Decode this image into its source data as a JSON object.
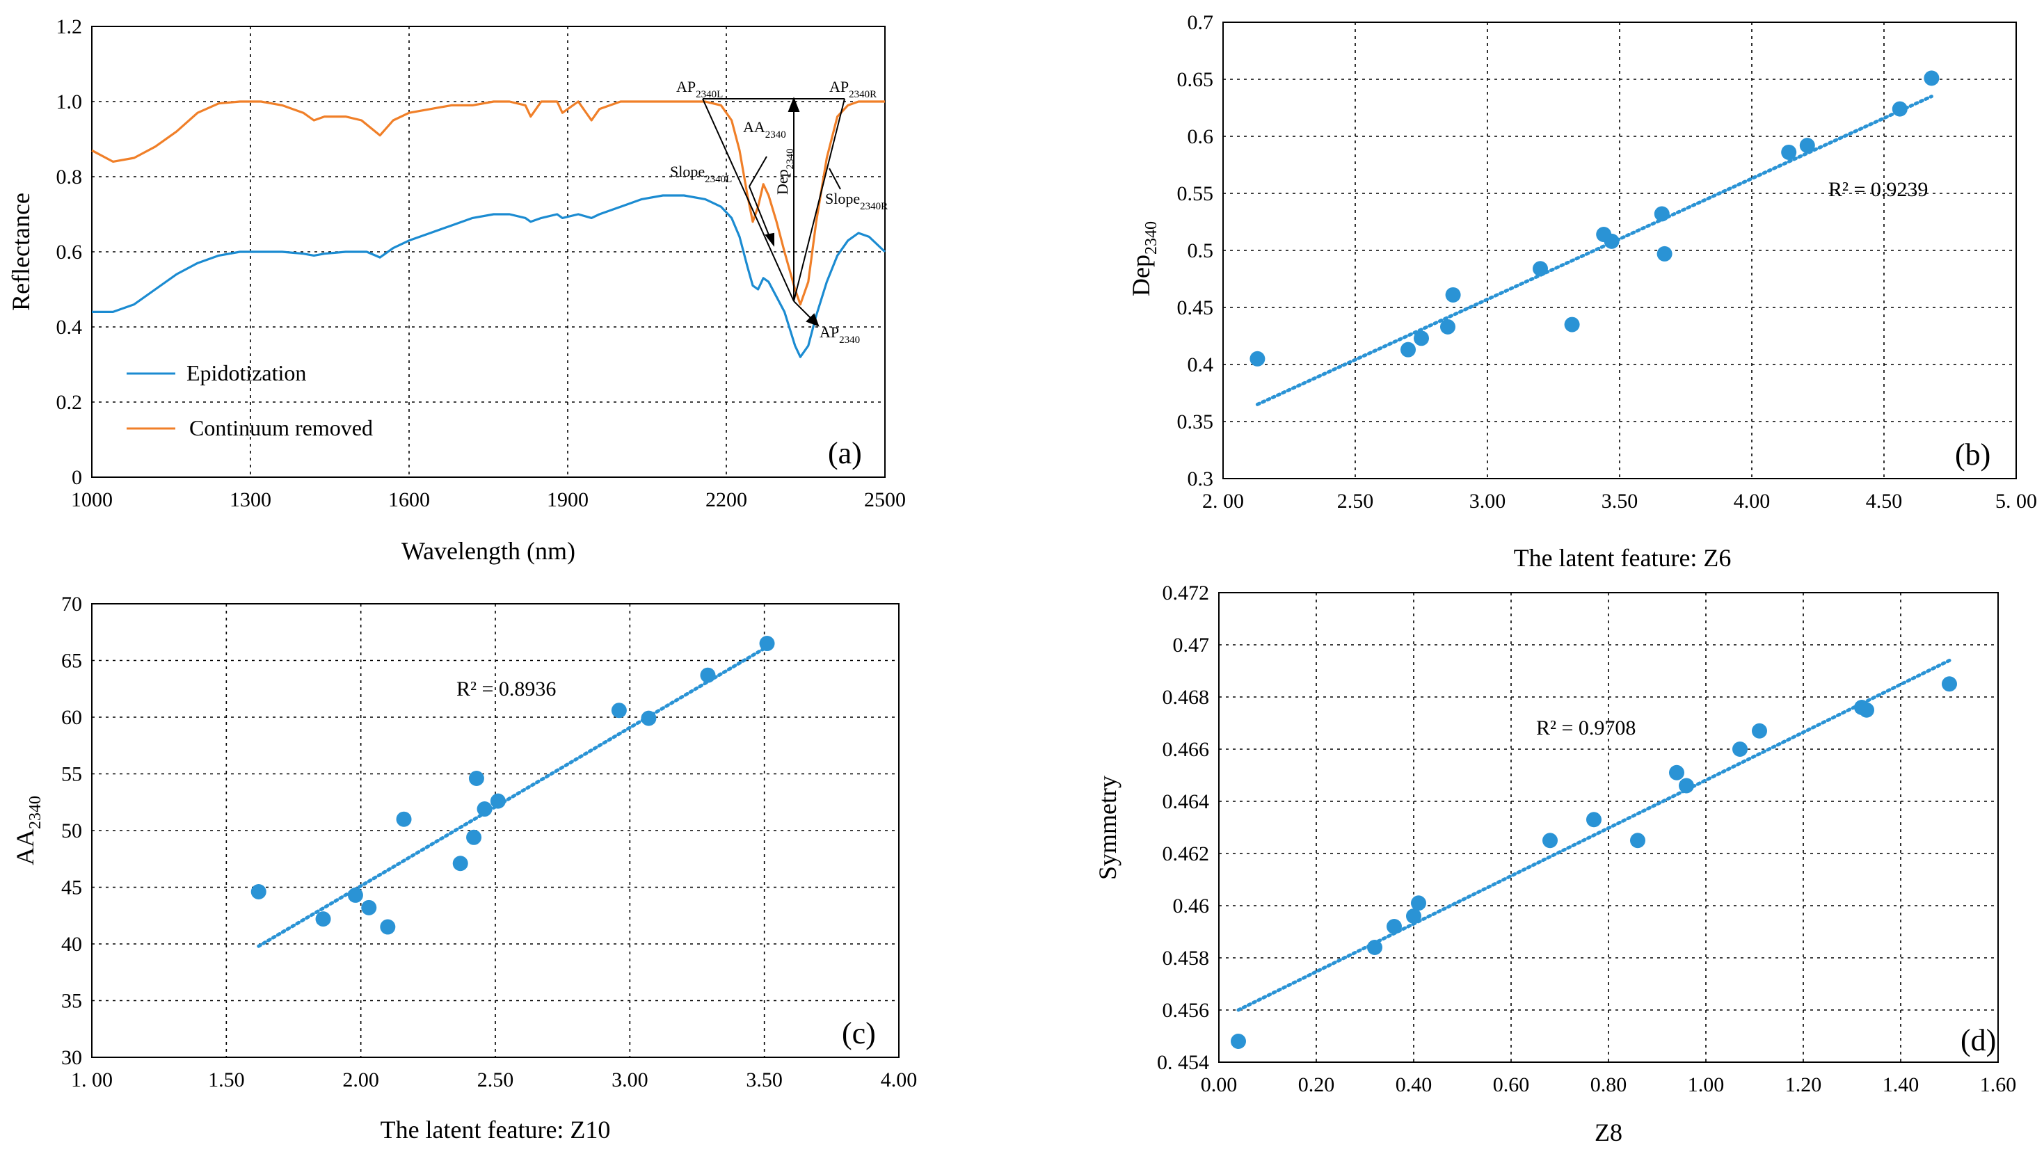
{
  "colors": {
    "blue": "#1b8bd1",
    "orange": "#f07f28",
    "dot": "#2a93d5",
    "trend": "#2a93d5"
  },
  "chart_data": [
    {
      "id": "a",
      "type": "line",
      "panel_label": "(a)",
      "xlabel": "Wavelength (nm)",
      "ylabel": "Reflectance",
      "xlim": [
        1000,
        2500
      ],
      "ylim": [
        0,
        1.2
      ],
      "xticks": [
        "1000",
        "1300",
        "1600",
        "1900",
        "2200",
        "2500"
      ],
      "yticks": [
        "0",
        "0.2",
        "0.4",
        "0.6",
        "0.8",
        "1.0",
        "1.2"
      ],
      "legend": [
        "Epidotization",
        "Continuum removed"
      ],
      "series": [
        {
          "name": "Epidotization",
          "x": [
            1000,
            1040,
            1080,
            1120,
            1160,
            1200,
            1240,
            1280,
            1320,
            1360,
            1400,
            1420,
            1440,
            1480,
            1520,
            1545,
            1570,
            1600,
            1640,
            1680,
            1720,
            1760,
            1790,
            1820,
            1830,
            1850,
            1880,
            1890,
            1920,
            1945,
            1960,
            2000,
            2040,
            2080,
            2120,
            2160,
            2190,
            2210,
            2225,
            2240,
            2250,
            2260,
            2270,
            2280,
            2295,
            2310,
            2330,
            2340,
            2355,
            2370,
            2390,
            2410,
            2430,
            2450,
            2470,
            2500
          ],
          "values": [
            0.44,
            0.44,
            0.46,
            0.5,
            0.54,
            0.57,
            0.59,
            0.6,
            0.6,
            0.6,
            0.595,
            0.59,
            0.595,
            0.6,
            0.6,
            0.585,
            0.61,
            0.63,
            0.65,
            0.67,
            0.69,
            0.7,
            0.7,
            0.69,
            0.68,
            0.69,
            0.7,
            0.69,
            0.7,
            0.69,
            0.7,
            0.72,
            0.74,
            0.75,
            0.75,
            0.74,
            0.72,
            0.69,
            0.64,
            0.56,
            0.51,
            0.5,
            0.53,
            0.52,
            0.48,
            0.44,
            0.35,
            0.32,
            0.35,
            0.43,
            0.52,
            0.59,
            0.63,
            0.65,
            0.64,
            0.6
          ]
        },
        {
          "name": "Continuum removed",
          "x": [
            1000,
            1040,
            1080,
            1120,
            1160,
            1200,
            1240,
            1280,
            1320,
            1360,
            1400,
            1420,
            1440,
            1480,
            1510,
            1545,
            1570,
            1600,
            1640,
            1680,
            1720,
            1760,
            1790,
            1820,
            1830,
            1850,
            1880,
            1890,
            1920,
            1945,
            1960,
            2000,
            2040,
            2080,
            2120,
            2160,
            2190,
            2210,
            2225,
            2240,
            2250,
            2260,
            2270,
            2280,
            2295,
            2310,
            2330,
            2340,
            2355,
            2370,
            2390,
            2410,
            2430,
            2450,
            2470,
            2500
          ],
          "values": [
            0.87,
            0.84,
            0.85,
            0.88,
            0.92,
            0.97,
            0.995,
            1.0,
            1.0,
            0.99,
            0.97,
            0.95,
            0.96,
            0.96,
            0.95,
            0.91,
            0.95,
            0.97,
            0.98,
            0.99,
            0.99,
            1.0,
            1.0,
            0.99,
            0.96,
            1.0,
            1.0,
            0.97,
            1.0,
            0.95,
            0.98,
            1.0,
            1.0,
            1.0,
            1.0,
            1.0,
            0.99,
            0.95,
            0.87,
            0.75,
            0.68,
            0.72,
            0.78,
            0.75,
            0.68,
            0.6,
            0.5,
            0.46,
            0.52,
            0.68,
            0.85,
            0.96,
            0.99,
            1.0,
            1.0,
            1.0
          ]
        }
      ],
      "annotations": {
        "ap_left_main": "AP",
        "ap_left_sub": "2340L",
        "ap_right_main": "AP",
        "ap_right_sub": "2340R",
        "aa_main": "AA",
        "aa_sub": "2340",
        "dep_main": "Dep",
        "dep_sub": "2340",
        "slope_left_main": "Slope",
        "slope_left_sub": "2340L",
        "slope_right_main": "Slope",
        "slope_right_sub": "2340R",
        "ap_bottom_main": "AP",
        "ap_bottom_sub": "2340"
      }
    },
    {
      "id": "b",
      "type": "scatter",
      "panel_label": "(b)",
      "xlabel": "The latent feature: Z6",
      "ylabel_main": "Dep",
      "ylabel_sub": "2340",
      "xlim": [
        2.0,
        5.0
      ],
      "ylim": [
        0.3,
        0.7
      ],
      "xticks": [
        "2. 00",
        "2.50",
        "3.00",
        "3.50",
        "4.00",
        "4.50",
        "5. 00"
      ],
      "yticks": [
        "0.3",
        "0.35",
        "0.4",
        "0.45",
        "0.5",
        "0.55",
        "0.6",
        "0.65",
        "0.7"
      ],
      "r2_label": "R² = 0.9239",
      "x": [
        2.13,
        2.7,
        2.75,
        2.85,
        2.87,
        3.2,
        3.32,
        3.44,
        3.47,
        3.66,
        3.67,
        4.14,
        4.21,
        4.56,
        4.68
      ],
      "y": [
        0.405,
        0.413,
        0.423,
        0.433,
        0.461,
        0.484,
        0.435,
        0.514,
        0.508,
        0.532,
        0.497,
        0.586,
        0.592,
        0.624,
        0.651
      ],
      "trend": {
        "x0": 2.13,
        "y0": 0.365,
        "x1": 4.68,
        "y1": 0.635
      }
    },
    {
      "id": "c",
      "type": "scatter",
      "panel_label": "(c)",
      "xlabel": "The latent feature: Z10",
      "ylabel_main": "AA",
      "ylabel_sub": "2340",
      "xlim": [
        1.0,
        4.0
      ],
      "ylim": [
        30,
        70
      ],
      "xticks": [
        "1. 00",
        "1.50",
        "2.00",
        "2.50",
        "3.00",
        "3.50",
        "4.00"
      ],
      "yticks": [
        "30",
        "35",
        "40",
        "45",
        "50",
        "55",
        "60",
        "65",
        "70"
      ],
      "r2_label": "R² =  0.8936",
      "x": [
        1.62,
        1.86,
        1.98,
        2.03,
        2.1,
        2.16,
        2.37,
        2.42,
        2.43,
        2.46,
        2.51,
        2.96,
        3.07,
        3.29,
        3.51
      ],
      "y": [
        44.6,
        42.2,
        44.3,
        43.2,
        41.5,
        51.0,
        47.1,
        49.4,
        54.6,
        51.9,
        52.6,
        60.6,
        59.9,
        63.7,
        66.5
      ],
      "trend": {
        "x0": 1.62,
        "y0": 39.8,
        "x1": 3.51,
        "y1": 66.2
      }
    },
    {
      "id": "d",
      "type": "scatter",
      "panel_label": "(d)",
      "xlabel": "Z8",
      "ylabel": "Symmetry",
      "xlim": [
        0.0,
        1.6
      ],
      "ylim": [
        0.454,
        0.472
      ],
      "xticks": [
        "0.00",
        "0.20",
        "0.40",
        "0.60",
        "0.80",
        "1.00",
        "1.20",
        "1.40",
        "1.60"
      ],
      "yticks": [
        "0. 454",
        "0.456",
        "0.458",
        "0.46",
        "0.462",
        "0.464",
        "0.466",
        "0.468",
        "0.47",
        "0.472"
      ],
      "r2_label": "R² = 0.9708",
      "x": [
        0.04,
        0.32,
        0.36,
        0.4,
        0.41,
        0.68,
        0.77,
        0.86,
        0.94,
        0.96,
        1.07,
        1.11,
        1.32,
        1.33,
        1.5
      ],
      "y": [
        0.4548,
        0.4584,
        0.4592,
        0.4596,
        0.4601,
        0.4625,
        0.4633,
        0.4625,
        0.4651,
        0.4646,
        0.466,
        0.4667,
        0.4676,
        0.4675,
        0.4685
      ],
      "trend": {
        "x0": 0.04,
        "y0": 0.456,
        "x1": 1.5,
        "y1": 0.4694
      }
    }
  ]
}
